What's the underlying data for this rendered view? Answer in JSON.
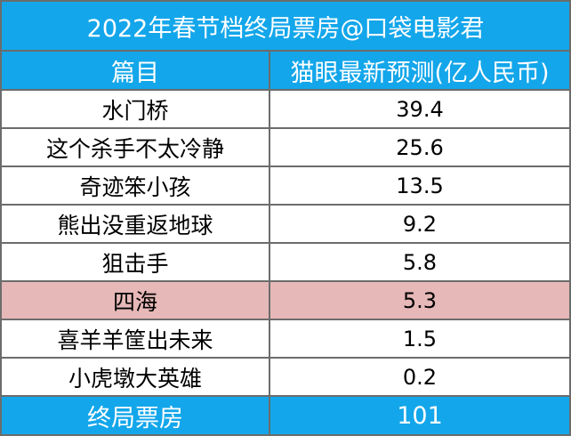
{
  "table": {
    "title": "2022年春节档终局票房@口袋电影君",
    "headers": [
      "篇目",
      "猫眼最新预测(亿人民币)"
    ],
    "rows": [
      {
        "name": "水门桥",
        "value": "39.4",
        "highlight": false
      },
      {
        "name": "这个杀手不太冷静",
        "value": "25.6",
        "highlight": false
      },
      {
        "name": "奇迹笨小孩",
        "value": "13.5",
        "highlight": false
      },
      {
        "name": "熊出没重返地球",
        "value": "9.2",
        "highlight": false
      },
      {
        "name": "狙击手",
        "value": "5.8",
        "highlight": false
      },
      {
        "name": "四海",
        "value": "5.3",
        "highlight": true
      },
      {
        "name": "喜羊羊筐出未来",
        "value": "1.5",
        "highlight": false
      },
      {
        "name": "小虎墩大英雄",
        "value": "0.2",
        "highlight": false
      }
    ],
    "total_label": "终局票房",
    "total_value": "101"
  },
  "colors": {
    "header_bg": "#13a6ea",
    "header_text": "#ffffff",
    "highlight_bg": "#e6b8b7",
    "border": "#6c6c6c"
  }
}
